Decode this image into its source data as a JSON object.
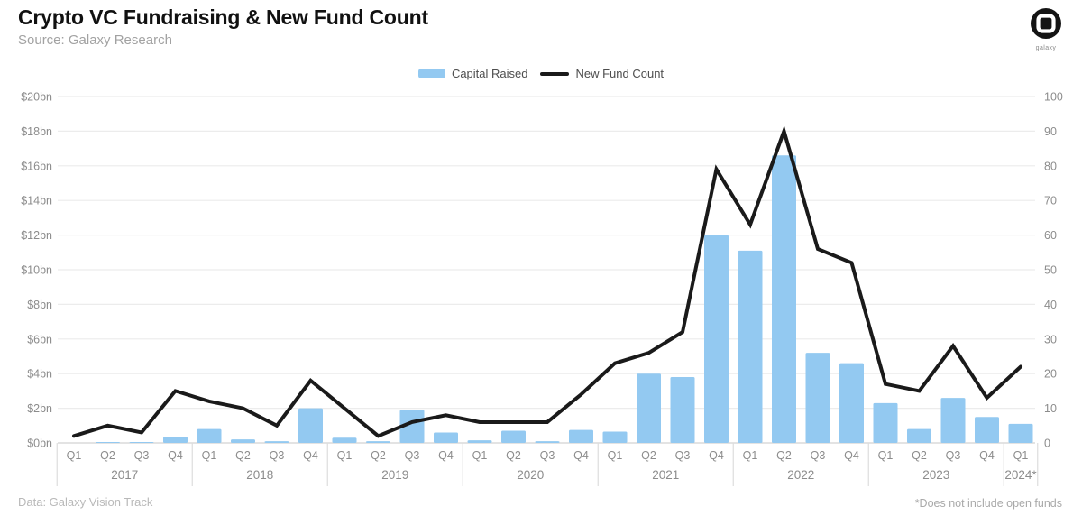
{
  "header": {
    "title": "Crypto VC Fundraising & New Fund Count",
    "subtitle": "Source: Galaxy Research"
  },
  "logo": {
    "caption": "galaxy"
  },
  "legend": {
    "bar_label": "Capital Raised",
    "line_label": "New Fund Count"
  },
  "footer": {
    "data_source": "Data: Galaxy Vision Track",
    "note": "*Does not include open funds"
  },
  "colors": {
    "bar": "#93c9f1",
    "line": "#1a1a1a",
    "grid": "#ececec",
    "baseline": "#d2d2d2",
    "separator": "#dddddd",
    "tick_text": "#8c8c8c"
  },
  "chart_data": {
    "type": "bar+line combo",
    "title": "Crypto VC Fundraising & New Fund Count",
    "x_years": [
      {
        "label": "2017",
        "quarters": [
          "Q1",
          "Q2",
          "Q3",
          "Q4"
        ]
      },
      {
        "label": "2018",
        "quarters": [
          "Q1",
          "Q2",
          "Q3",
          "Q4"
        ]
      },
      {
        "label": "2019",
        "quarters": [
          "Q1",
          "Q2",
          "Q3",
          "Q4"
        ]
      },
      {
        "label": "2020",
        "quarters": [
          "Q1",
          "Q2",
          "Q3",
          "Q4"
        ]
      },
      {
        "label": "2021",
        "quarters": [
          "Q1",
          "Q2",
          "Q3",
          "Q4"
        ]
      },
      {
        "label": "2022",
        "quarters": [
          "Q1",
          "Q2",
          "Q3",
          "Q4"
        ]
      },
      {
        "label": "2023",
        "quarters": [
          "Q1",
          "Q2",
          "Q3",
          "Q4"
        ]
      },
      {
        "label": "2024*",
        "quarters": [
          "Q1"
        ]
      }
    ],
    "series": [
      {
        "name": "Capital Raised",
        "type": "bar",
        "axis": "left",
        "unit": "$bn",
        "values": [
          0,
          0.05,
          0.05,
          0.35,
          0.8,
          0.2,
          0.1,
          2.0,
          0.3,
          0.1,
          1.9,
          0.6,
          0.15,
          0.7,
          0.1,
          0.75,
          0.65,
          4.0,
          3.8,
          12.0,
          11.1,
          16.6,
          5.2,
          4.6,
          2.3,
          0.8,
          2.6,
          1.5,
          1.1
        ]
      },
      {
        "name": "New Fund Count",
        "type": "line",
        "axis": "right",
        "unit": "funds",
        "values": [
          2,
          5,
          3,
          15,
          12,
          10,
          5,
          18,
          10,
          2,
          6,
          8,
          6,
          6,
          6,
          14,
          23,
          26,
          32,
          79,
          63,
          90,
          56,
          52,
          17,
          15,
          28,
          13,
          22
        ]
      }
    ],
    "left_axis": {
      "min": 0,
      "max": 20,
      "ticks": [
        "$0bn",
        "$2bn",
        "$4bn",
        "$6bn",
        "$8bn",
        "$10bn",
        "$12bn",
        "$14bn",
        "$16bn",
        "$18bn",
        "$20bn"
      ]
    },
    "right_axis": {
      "min": 0,
      "max": 100,
      "ticks": [
        "0",
        "10",
        "20",
        "30",
        "40",
        "50",
        "60",
        "70",
        "80",
        "90",
        "100"
      ]
    },
    "grid": true,
    "legend_position": "top-center"
  }
}
